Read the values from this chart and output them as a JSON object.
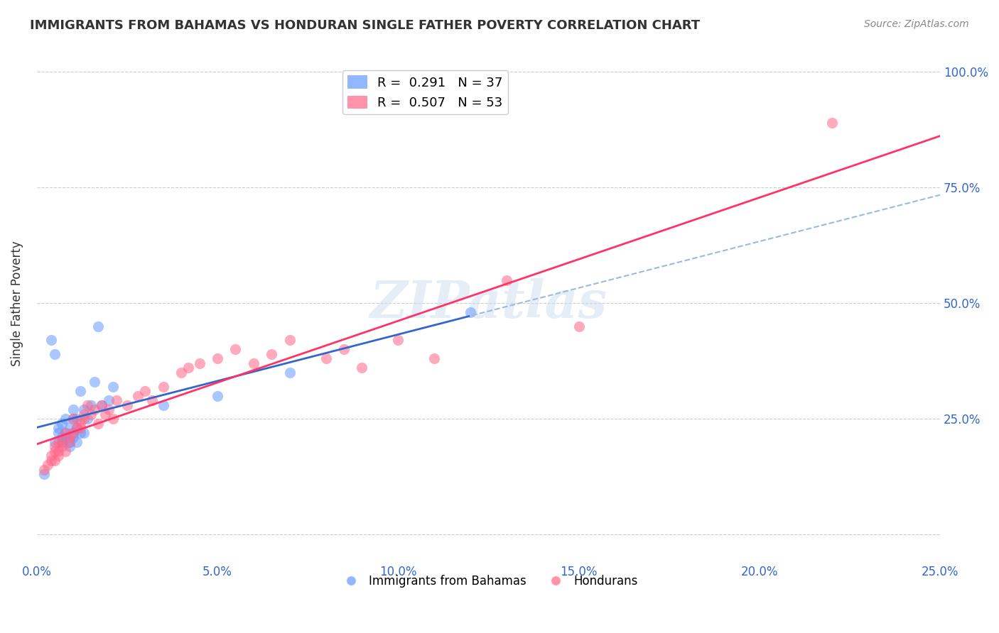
{
  "title": "IMMIGRANTS FROM BAHAMAS VS HONDURAN SINGLE FATHER POVERTY CORRELATION CHART",
  "source": "Source: ZipAtlas.com",
  "ylabel": "Single Father Poverty",
  "legend1_label": "R =  0.291   N = 37",
  "legend2_label": "R =  0.507   N = 53",
  "legend1_color": "#6699ff",
  "legend2_color": "#ff6688",
  "trendline1_color": "#3366cc",
  "trendline2_color": "#ff3366",
  "trendline1_dashed_color": "#99bbdd",
  "watermark": "ZIPatlas",
  "xlim": [
    0.0,
    0.25
  ],
  "ylim": [
    -0.05,
    1.05
  ],
  "bahamas_x": [
    0.002,
    0.004,
    0.005,
    0.005,
    0.006,
    0.006,
    0.007,
    0.007,
    0.007,
    0.008,
    0.008,
    0.008,
    0.009,
    0.009,
    0.009,
    0.01,
    0.01,
    0.01,
    0.01,
    0.011,
    0.011,
    0.011,
    0.012,
    0.012,
    0.013,
    0.013,
    0.014,
    0.015,
    0.016,
    0.017,
    0.018,
    0.02,
    0.021,
    0.035,
    0.05,
    0.07,
    0.12
  ],
  "bahamas_y": [
    0.13,
    0.42,
    0.39,
    0.2,
    0.22,
    0.23,
    0.2,
    0.21,
    0.24,
    0.21,
    0.22,
    0.25,
    0.19,
    0.2,
    0.23,
    0.21,
    0.22,
    0.25,
    0.27,
    0.2,
    0.23,
    0.25,
    0.22,
    0.31,
    0.22,
    0.27,
    0.25,
    0.28,
    0.33,
    0.45,
    0.28,
    0.29,
    0.32,
    0.28,
    0.3,
    0.35,
    0.48
  ],
  "honduran_x": [
    0.002,
    0.003,
    0.004,
    0.004,
    0.005,
    0.005,
    0.005,
    0.006,
    0.006,
    0.006,
    0.007,
    0.007,
    0.008,
    0.008,
    0.009,
    0.009,
    0.01,
    0.01,
    0.011,
    0.012,
    0.012,
    0.013,
    0.013,
    0.014,
    0.015,
    0.016,
    0.017,
    0.018,
    0.019,
    0.02,
    0.021,
    0.022,
    0.025,
    0.028,
    0.03,
    0.032,
    0.035,
    0.04,
    0.042,
    0.045,
    0.05,
    0.055,
    0.06,
    0.065,
    0.07,
    0.08,
    0.085,
    0.09,
    0.1,
    0.11,
    0.13,
    0.15,
    0.22
  ],
  "honduran_y": [
    0.14,
    0.15,
    0.17,
    0.16,
    0.16,
    0.18,
    0.19,
    0.17,
    0.18,
    0.2,
    0.19,
    0.2,
    0.18,
    0.22,
    0.2,
    0.21,
    0.22,
    0.25,
    0.23,
    0.23,
    0.24,
    0.25,
    0.26,
    0.28,
    0.26,
    0.27,
    0.24,
    0.28,
    0.26,
    0.27,
    0.25,
    0.29,
    0.28,
    0.3,
    0.31,
    0.29,
    0.32,
    0.35,
    0.36,
    0.37,
    0.38,
    0.4,
    0.37,
    0.39,
    0.42,
    0.38,
    0.4,
    0.36,
    0.42,
    0.38,
    0.55,
    0.45,
    0.89
  ]
}
